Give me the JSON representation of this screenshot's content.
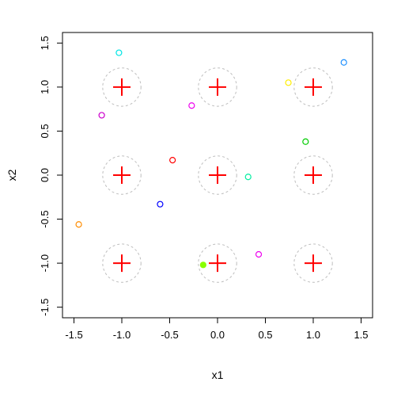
{
  "chart_data": {
    "type": "scatter",
    "xlabel": "x1",
    "ylabel": "x2",
    "xlim": [
      -1.62,
      1.62
    ],
    "ylim": [
      -1.62,
      1.62
    ],
    "xticks": [
      -1.5,
      -1.0,
      -0.5,
      0.0,
      0.5,
      1.0,
      1.5
    ],
    "yticks": [
      -1.5,
      -1.0,
      -0.5,
      0.0,
      0.5,
      1.0,
      1.5
    ],
    "grid": false,
    "centers": {
      "marker": "plus",
      "color": "#ff0000",
      "radius": 0.2,
      "circle_color": "#bebebe",
      "points": [
        {
          "x": -1,
          "y": 1
        },
        {
          "x": 0,
          "y": 1
        },
        {
          "x": 1,
          "y": 1
        },
        {
          "x": -1,
          "y": 0
        },
        {
          "x": 0,
          "y": 0
        },
        {
          "x": 1,
          "y": 0
        },
        {
          "x": -1,
          "y": -1
        },
        {
          "x": 0,
          "y": -1
        },
        {
          "x": 1,
          "y": -1
        }
      ]
    },
    "samples": [
      {
        "x": -1.03,
        "y": 1.39,
        "color": "#00e5e5",
        "filled": false
      },
      {
        "x": 1.32,
        "y": 1.28,
        "color": "#1e90ff",
        "filled": false
      },
      {
        "x": 0.74,
        "y": 1.05,
        "color": "#ffee00",
        "filled": false
      },
      {
        "x": -0.27,
        "y": 0.79,
        "color": "#ee00ee",
        "filled": false
      },
      {
        "x": -1.21,
        "y": 0.68,
        "color": "#cc00cc",
        "filled": false
      },
      {
        "x": 0.92,
        "y": 0.38,
        "color": "#00cc00",
        "filled": false
      },
      {
        "x": -0.47,
        "y": 0.17,
        "color": "#ff0000",
        "filled": false
      },
      {
        "x": 0.32,
        "y": -0.02,
        "color": "#00eea0",
        "filled": false
      },
      {
        "x": -0.6,
        "y": -0.33,
        "color": "#0000ff",
        "filled": false
      },
      {
        "x": -1.45,
        "y": -0.56,
        "color": "#ff8c00",
        "filled": false
      },
      {
        "x": 0.43,
        "y": -0.9,
        "color": "#ee00ee",
        "filled": false
      },
      {
        "x": -0.15,
        "y": -1.02,
        "color": "#88ff00",
        "filled": true
      }
    ]
  }
}
